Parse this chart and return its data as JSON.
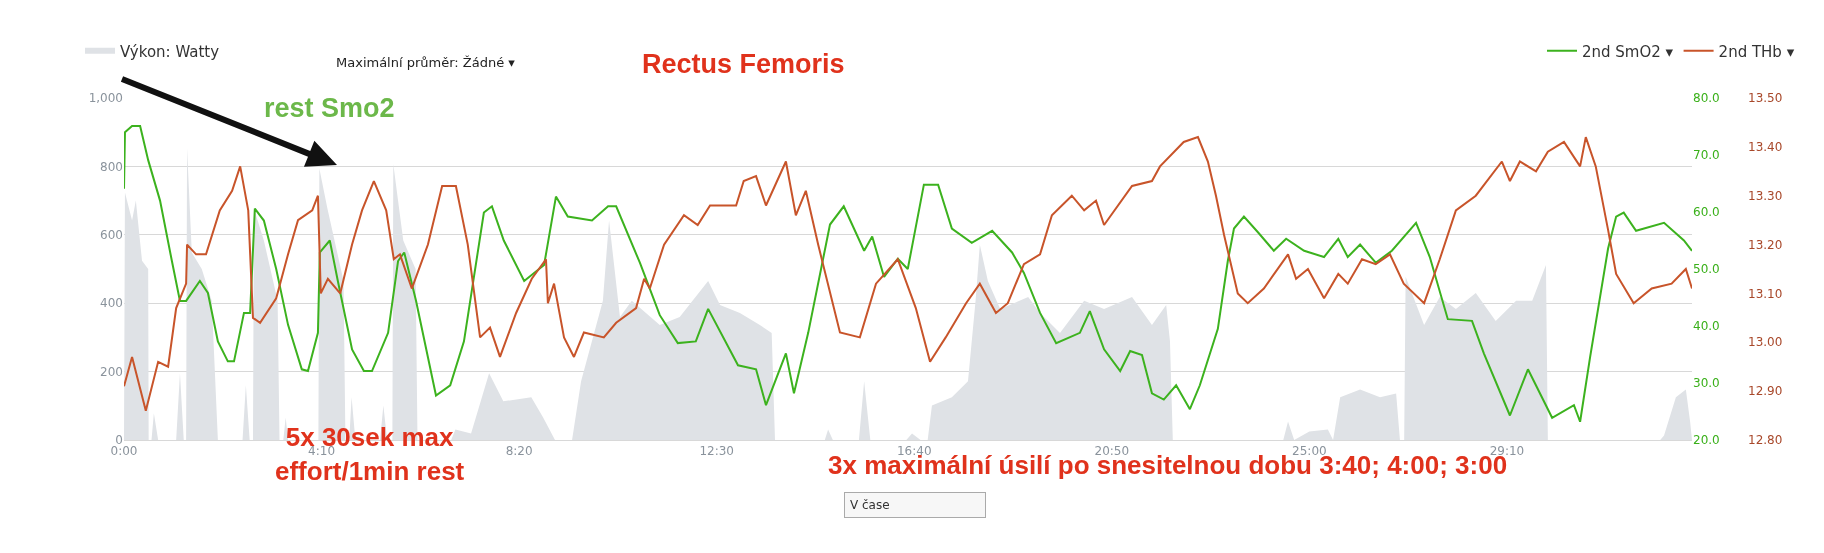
{
  "chart_data": {
    "type": "line",
    "title": "Rectus Femoris",
    "xlim": [
      0,
      33.07
    ],
    "xticks": [
      {
        "value": 0,
        "label": "0:00"
      },
      {
        "value": 4.1667,
        "label": "4:10"
      },
      {
        "value": 8.3333,
        "label": "8:20"
      },
      {
        "value": 12.5,
        "label": "12:30"
      },
      {
        "value": 16.6667,
        "label": "16:40"
      },
      {
        "value": 20.8333,
        "label": "20:50"
      },
      {
        "value": 25,
        "label": "25:00"
      },
      {
        "value": 29.1667,
        "label": "29:10"
      }
    ],
    "ylim": [
      0,
      1000
    ],
    "yticks": [
      0,
      200,
      400,
      600,
      800,
      {
        "value": 1000,
        "label": "1,000"
      }
    ],
    "y2lim": [
      20,
      80
    ],
    "y2ticks": [
      {
        "value": 20,
        "label": "20.0"
      },
      {
        "value": 30,
        "label": "30.0"
      },
      {
        "value": 40,
        "label": "40.0"
      },
      {
        "value": 50,
        "label": "50.0"
      },
      {
        "value": 60,
        "label": "60.0"
      },
      {
        "value": 70,
        "label": "70.0"
      },
      {
        "value": 80,
        "label": "80.0"
      }
    ],
    "y3lim": [
      12.8,
      13.5
    ],
    "y3ticks": [
      {
        "value": 12.8,
        "label": "12.80"
      },
      {
        "value": 12.9,
        "label": "12.90"
      },
      {
        "value": 13.0,
        "label": "13.00"
      },
      {
        "value": 13.1,
        "label": "13.10"
      },
      {
        "value": 13.2,
        "label": "13.20"
      },
      {
        "value": 13.3,
        "label": "13.30"
      },
      {
        "value": 13.4,
        "label": "13.40"
      },
      {
        "value": 13.5,
        "label": "13.50"
      }
    ],
    "grid": "y",
    "legend": "top",
    "annotations": [
      "Maximální průměr: Žádné ▾",
      "rest Smo2",
      "5x 30sek max\neffort/1min rest",
      "3x maximální úsilí po snesitelnou dobu 3:40; 4:00; 3:00",
      "V čase"
    ],
    "series": [
      {
        "name": "Výkon: Watty",
        "type": "area",
        "axis": "y",
        "color": "#dfe2e6",
        "x": [
          0,
          0.02,
          0.17,
          0.25,
          0.38,
          0.51,
          0.52,
          0.58,
          0.63,
          0.72,
          1.1,
          1.18,
          1.26,
          1.31,
          1.33,
          1.43,
          1.64,
          1.85,
          1.98,
          2.5,
          2.57,
          2.65,
          2.72,
          2.74,
          2.95,
          3.24,
          3.28,
          3.36,
          3.41,
          3.46,
          4.1,
          4.12,
          4.29,
          4.63,
          4.67,
          4.75,
          4.8,
          4.88,
          5.4,
          5.47,
          5.55,
          5.66,
          5.68,
          5.89,
          6.15,
          6.19,
          6.9,
          6.99,
          7.32,
          7.7,
          8.0,
          8.59,
          8.84,
          9.09,
          9.45,
          9.64,
          10.1,
          10.23,
          10.46,
          10.71,
          11.3,
          11.72,
          12.32,
          12.57,
          12.99,
          13.41,
          13.66,
          13.73,
          14.78,
          14.85,
          14.95,
          15.5,
          15.61,
          15.74,
          16.5,
          16.62,
          16.8,
          16.95,
          17.04,
          17.46,
          17.8,
          17.96,
          18.05,
          18.22,
          18.48,
          19.07,
          19.32,
          19.74,
          20.25,
          20.67,
          21.26,
          21.68,
          21.98,
          22.06,
          22.12,
          24.45,
          24.55,
          24.68,
          25.0,
          25.39,
          25.5,
          25.65,
          26.07,
          26.49,
          26.83,
          26.91,
          27.0,
          27.03,
          27.42,
          27.75,
          28.09,
          28.51,
          28.93,
          29.36,
          29.7,
          29.99,
          30.03,
          32.4,
          32.48,
          32.73,
          32.94,
          33.03,
          33.07
        ],
        "values": [
          0,
          724,
          642,
          700,
          524,
          500,
          0,
          0,
          78,
          0,
          0,
          195,
          0,
          0,
          853,
          548,
          500,
          407,
          0,
          0,
          160,
          0,
          0,
          677,
          583,
          407,
          0,
          0,
          66,
          0,
          0,
          794,
          677,
          465,
          0,
          0,
          125,
          0,
          0,
          101,
          0,
          0,
          806,
          583,
          500,
          0,
          0,
          31,
          19,
          195,
          113,
          125,
          66,
          0,
          0,
          172,
          407,
          642,
          360,
          407,
          336,
          360,
          465,
          395,
          371,
          336,
          313,
          0,
          0,
          31,
          0,
          0,
          172,
          0,
          0,
          19,
          0,
          0,
          101,
          125,
          172,
          407,
          571,
          465,
          383,
          418,
          371,
          313,
          407,
          383,
          418,
          336,
          395,
          289,
          0,
          0,
          54,
          0,
          25,
          31,
          0,
          125,
          148,
          125,
          136,
          0,
          0,
          477,
          336,
          418,
          383,
          430,
          348,
          407,
          407,
          512,
          0,
          0,
          13,
          125,
          148,
          54,
          0
        ]
      },
      {
        "name": "2nd SmO2 ▾",
        "axis": "y2",
        "color": "#3cb21e",
        "x": [
          0,
          0.02,
          0.17,
          0.34,
          0.51,
          0.76,
          1.01,
          1.18,
          1.31,
          1.6,
          1.77,
          1.98,
          2.19,
          2.32,
          2.53,
          2.66,
          2.76,
          2.95,
          3.21,
          3.46,
          3.75,
          3.88,
          4.09,
          4.13,
          4.34,
          4.51,
          4.81,
          5.06,
          5.23,
          5.57,
          5.78,
          5.91,
          6.16,
          6.58,
          6.88,
          7.17,
          7.59,
          7.76,
          8.01,
          8.44,
          8.86,
          9.11,
          9.36,
          9.87,
          10.21,
          10.38,
          10.88,
          11.3,
          11.68,
          12.06,
          12.32,
          12.95,
          13.33,
          13.54,
          13.96,
          14.13,
          14.43,
          14.89,
          15.18,
          15.61,
          15.78,
          16.03,
          16.32,
          16.53,
          16.87,
          17.17,
          17.46,
          17.88,
          18.31,
          18.73,
          18.98,
          19.32,
          19.66,
          20.16,
          20.37,
          20.67,
          21.01,
          21.22,
          21.47,
          21.68,
          21.93,
          22.19,
          22.48,
          22.69,
          23.07,
          23.28,
          23.41,
          23.62,
          23.92,
          24.25,
          24.51,
          24.89,
          25.31,
          25.61,
          25.81,
          26.07,
          26.4,
          26.74,
          27.25,
          27.54,
          27.92,
          28.43,
          28.68,
          29.23,
          29.61,
          30.12,
          30.58,
          30.71,
          30.92,
          31.3,
          31.47,
          31.63,
          31.89,
          32.48,
          32.9,
          33.07
        ],
        "values": [
          64.1,
          74.0,
          75.1,
          75.1,
          69.1,
          62.0,
          51.4,
          44.4,
          44.4,
          47.9,
          45.8,
          37.3,
          33.8,
          33.8,
          42.3,
          42.3,
          60.6,
          58.5,
          50.0,
          40.2,
          32.4,
          32.1,
          38.8,
          52.9,
          55.0,
          47.9,
          35.9,
          32.1,
          32.1,
          38.8,
          51.4,
          52.9,
          44.4,
          27.8,
          29.6,
          37.3,
          59.9,
          61.0,
          55.0,
          47.9,
          50.7,
          62.7,
          59.2,
          58.5,
          61.0,
          61.0,
          51.1,
          41.9,
          37.0,
          37.3,
          43.0,
          33.1,
          32.4,
          26.1,
          35.2,
          28.2,
          38.8,
          57.8,
          61.0,
          53.2,
          55.7,
          48.6,
          51.8,
          50.0,
          64.8,
          64.8,
          57.1,
          54.6,
          56.7,
          52.9,
          49.3,
          42.3,
          37.0,
          38.8,
          42.6,
          35.9,
          32.1,
          35.6,
          34.9,
          28.2,
          27.1,
          29.6,
          25.4,
          29.6,
          39.5,
          51.4,
          57.1,
          59.2,
          56.4,
          53.2,
          55.3,
          53.2,
          52.1,
          55.3,
          52.1,
          54.3,
          51.1,
          53.2,
          58.1,
          52.1,
          41.2,
          40.9,
          35.2,
          24.3,
          32.4,
          23.9,
          26.1,
          23.2,
          34.5,
          53.6,
          59.2,
          59.9,
          56.7,
          58.1,
          55.0,
          53.2
        ]
      },
      {
        "name": "2nd THb ▾",
        "axis": "y3",
        "color": "#c8542a",
        "x": [
          0,
          0.17,
          0.46,
          0.72,
          0.93,
          1.1,
          1.31,
          1.33,
          1.52,
          1.73,
          2.02,
          2.28,
          2.45,
          2.62,
          2.72,
          2.87,
          3.21,
          3.46,
          3.67,
          3.97,
          4.09,
          4.15,
          4.3,
          4.56,
          4.81,
          5.02,
          5.27,
          5.53,
          5.69,
          5.82,
          6.07,
          6.41,
          6.71,
          7.0,
          7.25,
          7.51,
          7.72,
          7.93,
          8.27,
          8.6,
          8.9,
          8.94,
          9.07,
          9.28,
          9.49,
          9.7,
          10.12,
          10.38,
          10.8,
          10.97,
          11.09,
          11.39,
          11.81,
          12.1,
          12.36,
          12.91,
          13.07,
          13.33,
          13.54,
          13.96,
          14.17,
          14.38,
          14.64,
          15.1,
          15.52,
          15.86,
          16.32,
          16.7,
          17.0,
          17.33,
          17.76,
          18.05,
          18.39,
          18.64,
          18.98,
          19.32,
          19.57,
          19.99,
          20.25,
          20.5,
          20.67,
          21.26,
          21.68,
          21.85,
          22.35,
          22.65,
          22.86,
          23.03,
          23.2,
          23.49,
          23.7,
          24.04,
          24.55,
          24.72,
          24.97,
          25.31,
          25.61,
          25.81,
          26.11,
          26.4,
          26.7,
          26.99,
          27.42,
          27.75,
          28.09,
          28.51,
          29.06,
          29.23,
          29.44,
          29.78,
          30.03,
          30.37,
          30.71,
          30.83,
          31.04,
          31.3,
          31.47,
          31.84,
          32.22,
          32.64,
          32.94,
          33.07
        ],
        "values": [
          12.91,
          12.97,
          12.86,
          12.96,
          12.95,
          13.07,
          13.12,
          13.2,
          13.18,
          13.18,
          13.27,
          13.31,
          13.36,
          13.27,
          13.05,
          13.04,
          13.09,
          13.18,
          13.25,
          13.27,
          13.3,
          13.1,
          13.13,
          13.1,
          13.2,
          13.27,
          13.33,
          13.27,
          13.17,
          13.18,
          13.11,
          13.2,
          13.32,
          13.32,
          13.2,
          13.01,
          13.03,
          12.97,
          13.06,
          13.13,
          13.17,
          13.08,
          13.12,
          13.01,
          12.97,
          13.02,
          13.01,
          13.04,
          13.07,
          13.13,
          13.11,
          13.2,
          13.26,
          13.24,
          13.28,
          13.28,
          13.33,
          13.34,
          13.28,
          13.37,
          13.26,
          13.31,
          13.2,
          13.02,
          13.01,
          13.12,
          13.17,
          13.07,
          12.96,
          13.01,
          13.08,
          13.12,
          13.06,
          13.08,
          13.16,
          13.18,
          13.26,
          13.3,
          13.27,
          13.29,
          13.24,
          13.32,
          13.33,
          13.36,
          13.41,
          13.42,
          13.37,
          13.3,
          13.22,
          13.1,
          13.08,
          13.11,
          13.18,
          13.13,
          13.15,
          13.09,
          13.14,
          13.12,
          13.17,
          13.16,
          13.18,
          13.12,
          13.08,
          13.17,
          13.27,
          13.3,
          13.37,
          13.33,
          13.37,
          13.35,
          13.39,
          13.41,
          13.36,
          13.42,
          13.36,
          13.23,
          13.14,
          13.08,
          13.11,
          13.12,
          13.15,
          13.11
        ]
      }
    ]
  }
}
